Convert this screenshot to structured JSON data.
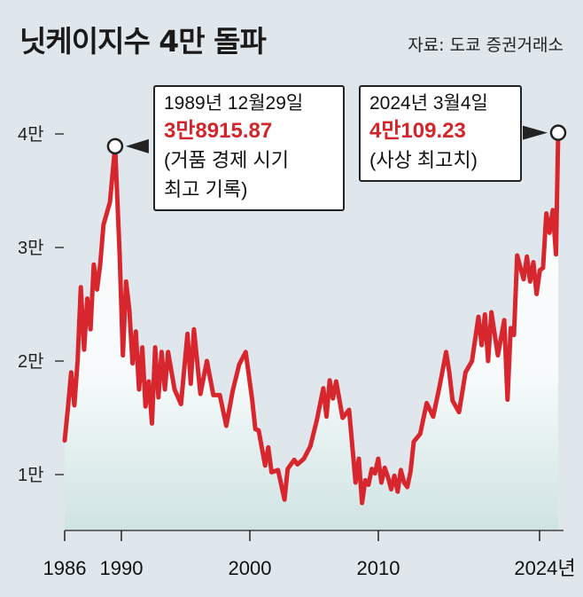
{
  "header": {
    "title": "닛케이지수 4만 돌파",
    "source": "자료: 도쿄 증권거래소"
  },
  "callouts": [
    {
      "date": "1989년 12월29일",
      "value": "3만8915.87",
      "note1": "(거품 경제 시기",
      "note2": "최고 기록)"
    },
    {
      "date": "2024년 3월4일",
      "value": "4만109.23",
      "note1": "(사상 최고치)"
    }
  ],
  "colors": {
    "line": "#d8262e",
    "background": "#dfe7ec",
    "fill_top": "#ffffff",
    "fill_bottom": "#cfe3e3"
  },
  "chart_data": {
    "type": "line",
    "title": "닛케이지수 4만 돌파",
    "xlabel": "",
    "ylabel": "",
    "y_ticks": [
      {
        "value": 10000,
        "label": "1만"
      },
      {
        "value": 20000,
        "label": "2만"
      },
      {
        "value": 30000,
        "label": "3만"
      },
      {
        "value": 40000,
        "label": "4만"
      }
    ],
    "x_ticks": [
      {
        "value": 1986,
        "label": "1986"
      },
      {
        "value": 1990,
        "label": "1990"
      },
      {
        "value": 2000,
        "label": "2000"
      },
      {
        "value": 2010,
        "label": "2010"
      },
      {
        "value": 2024,
        "label": "2024년"
      }
    ],
    "xlim": [
      1986,
      2024.2
    ],
    "ylim": [
      7000,
      40000
    ],
    "grid": false,
    "series": [
      {
        "x": [
          1986.0,
          1986.25,
          1986.5,
          1986.75,
          1987.0,
          1987.25,
          1987.5,
          1987.75,
          1988.0,
          1988.25,
          1988.5,
          1988.75,
          1989.0,
          1989.5,
          1989.9,
          1990.25,
          1990.5,
          1990.75,
          1991.0,
          1991.25,
          1991.5,
          1991.75,
          1992.0,
          1992.25,
          1992.5,
          1992.75,
          1993.0,
          1993.25,
          1993.5,
          1993.75,
          1994.0,
          1994.5,
          1995.0,
          1995.5,
          1995.75,
          1996.0,
          1996.5,
          1997.0,
          1997.5,
          1998.0,
          1998.5,
          1999.0,
          1999.5,
          2000.0,
          2000.5,
          2000.75,
          2001.0,
          2001.5,
          2001.75,
          2002.0,
          2002.5,
          2003.0,
          2003.25,
          2003.75,
          2004.0,
          2004.5,
          2005.0,
          2005.5,
          2006.0,
          2006.25,
          2006.5,
          2006.75,
          2007.0,
          2007.5,
          2008.0,
          2008.5,
          2008.75,
          2009.0,
          2009.25,
          2009.5,
          2009.75,
          2010.0,
          2010.25,
          2010.5,
          2010.75,
          2011.0,
          2011.25,
          2011.5,
          2011.75,
          2012.0,
          2012.25,
          2012.5,
          2012.75,
          2013.0,
          2013.5,
          2014.0,
          2014.5,
          2015.0,
          2015.5,
          2015.75,
          2016.0,
          2016.5,
          2017.0,
          2017.5,
          2018.0,
          2018.25,
          2018.5,
          2018.75,
          2019.0,
          2019.5,
          2020.0,
          2020.25,
          2020.5,
          2020.75,
          2021.0,
          2021.5,
          2021.75,
          2022.0,
          2022.25,
          2022.5,
          2022.75,
          2023.0,
          2023.25,
          2023.5,
          2023.75,
          2024.0,
          2024.17
        ],
        "y": [
          13000,
          15800,
          19000,
          16100,
          20000,
          26500,
          21000,
          25500,
          22800,
          28500,
          26300,
          28500,
          32000,
          34000,
          38915,
          29500,
          20500,
          27000,
          24500,
          19800,
          22600,
          17500,
          21200,
          16000,
          18200,
          14500,
          21200,
          16800,
          20800,
          17500,
          20800,
          17500,
          16200,
          22400,
          18000,
          22800,
          17100,
          20000,
          17000,
          17000,
          14300,
          17400,
          19700,
          20800,
          16600,
          14000,
          13900,
          10800,
          12400,
          10200,
          10400,
          7800,
          10500,
          11300,
          10900,
          11400,
          12500,
          14800,
          17600,
          15100,
          18300,
          16700,
          18200,
          15000,
          15700,
          9300,
          11400,
          7500,
          9500,
          9100,
          10500,
          10100,
          11400,
          9300,
          10600,
          9800,
          8700,
          9900,
          8500,
          10400,
          9300,
          8900,
          10300,
          12900,
          13600,
          16300,
          15100,
          17800,
          20800,
          19000,
          16500,
          15500,
          19000,
          20000,
          23900,
          21400,
          24100,
          20000,
          24300,
          20500,
          23600,
          16600,
          22900,
          22300,
          29300,
          27200,
          29200,
          27000,
          28700,
          25900,
          28000,
          28200,
          33000,
          31300,
          33300,
          29400,
          40109
        ]
      }
    ]
  }
}
